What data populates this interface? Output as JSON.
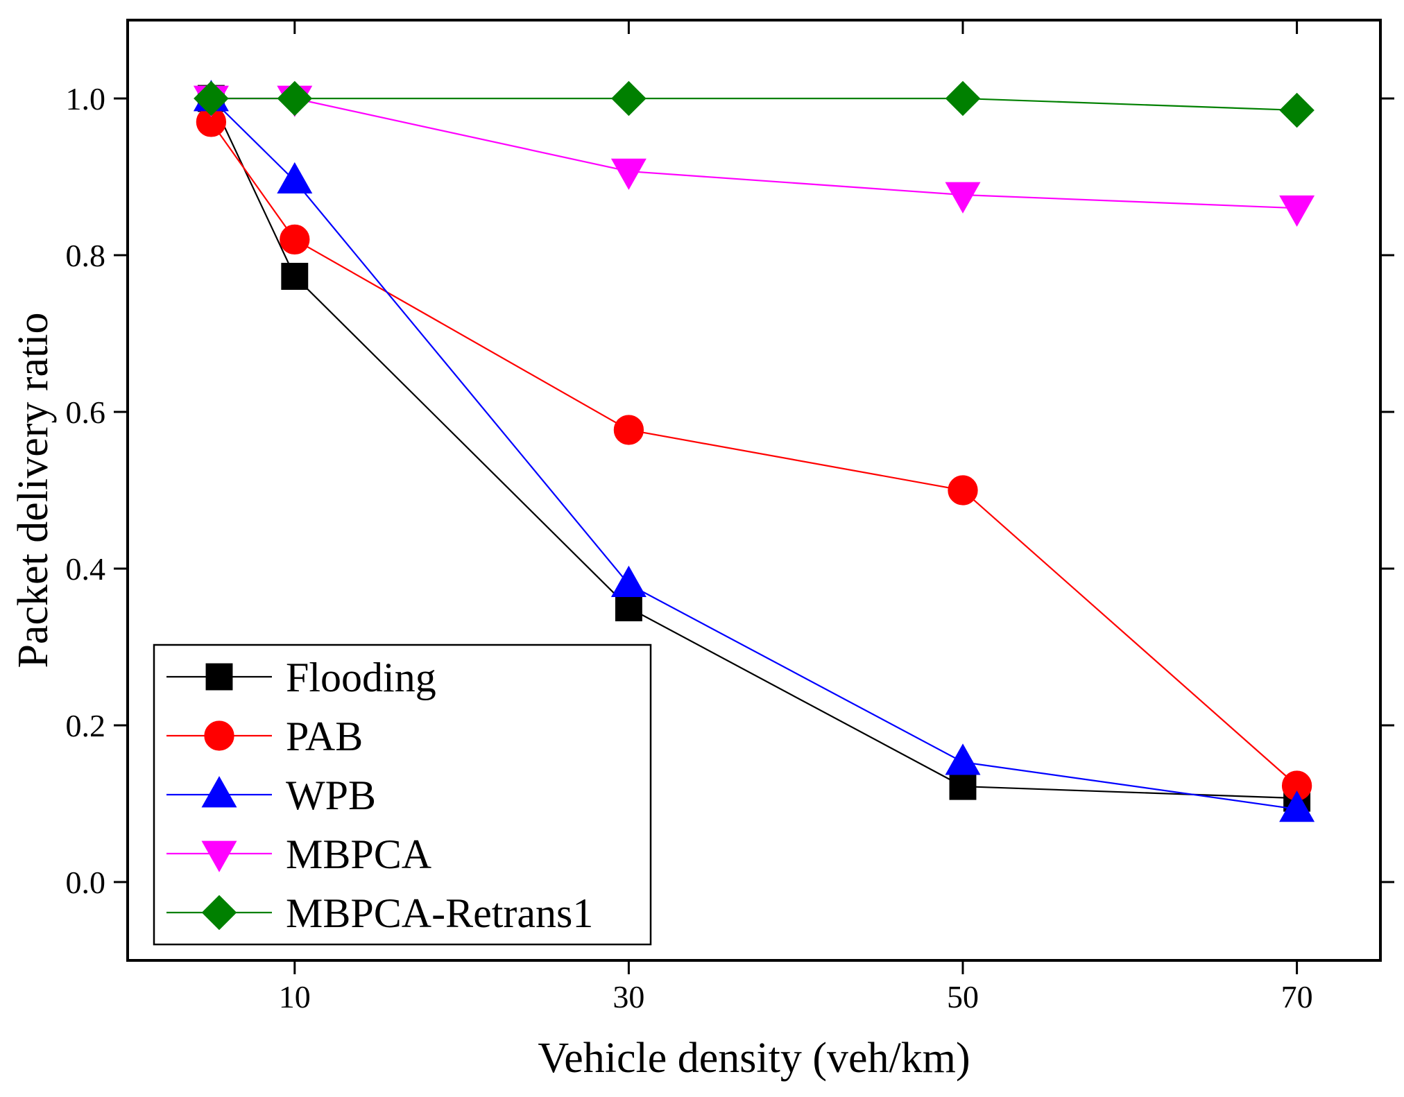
{
  "chart_data": {
    "type": "line",
    "title": "",
    "xlabel": "Vehicle density (veh/km)",
    "ylabel": "Packet delivery ratio",
    "x": [
      5,
      10,
      30,
      50,
      70
    ],
    "xlim": [
      0,
      75
    ],
    "ylim": [
      -0.1,
      1.1
    ],
    "xticks": [
      "10",
      "30",
      "50",
      "70"
    ],
    "xtick_values": [
      10,
      30,
      50,
      70
    ],
    "yticks": [
      "0.0",
      "0.2",
      "0.4",
      "0.6",
      "0.8",
      "1.0"
    ],
    "ytick_values": [
      0.0,
      0.2,
      0.4,
      0.6,
      0.8,
      1.0
    ],
    "legend_position": "bottom-left",
    "series": [
      {
        "name": "Flooding",
        "color": "#000000",
        "marker": "square",
        "values": [
          1.0,
          0.773,
          0.35,
          0.122,
          0.107
        ]
      },
      {
        "name": "PAB",
        "color": "#ff0000",
        "marker": "circle",
        "values": [
          0.97,
          0.82,
          0.577,
          0.5,
          0.123
        ]
      },
      {
        "name": "WPB",
        "color": "#0000ff",
        "marker": "triangle-up",
        "values": [
          1.0,
          0.895,
          0.38,
          0.153,
          0.093
        ]
      },
      {
        "name": "MBPCA",
        "color": "#ff00ff",
        "marker": "triangle-down",
        "values": [
          1.0,
          1.0,
          0.907,
          0.877,
          0.86
        ]
      },
      {
        "name": "MBPCA-Retrans1",
        "color": "#008000",
        "marker": "diamond",
        "values": [
          1.0,
          1.0,
          1.0,
          1.0,
          0.985
        ]
      }
    ]
  }
}
